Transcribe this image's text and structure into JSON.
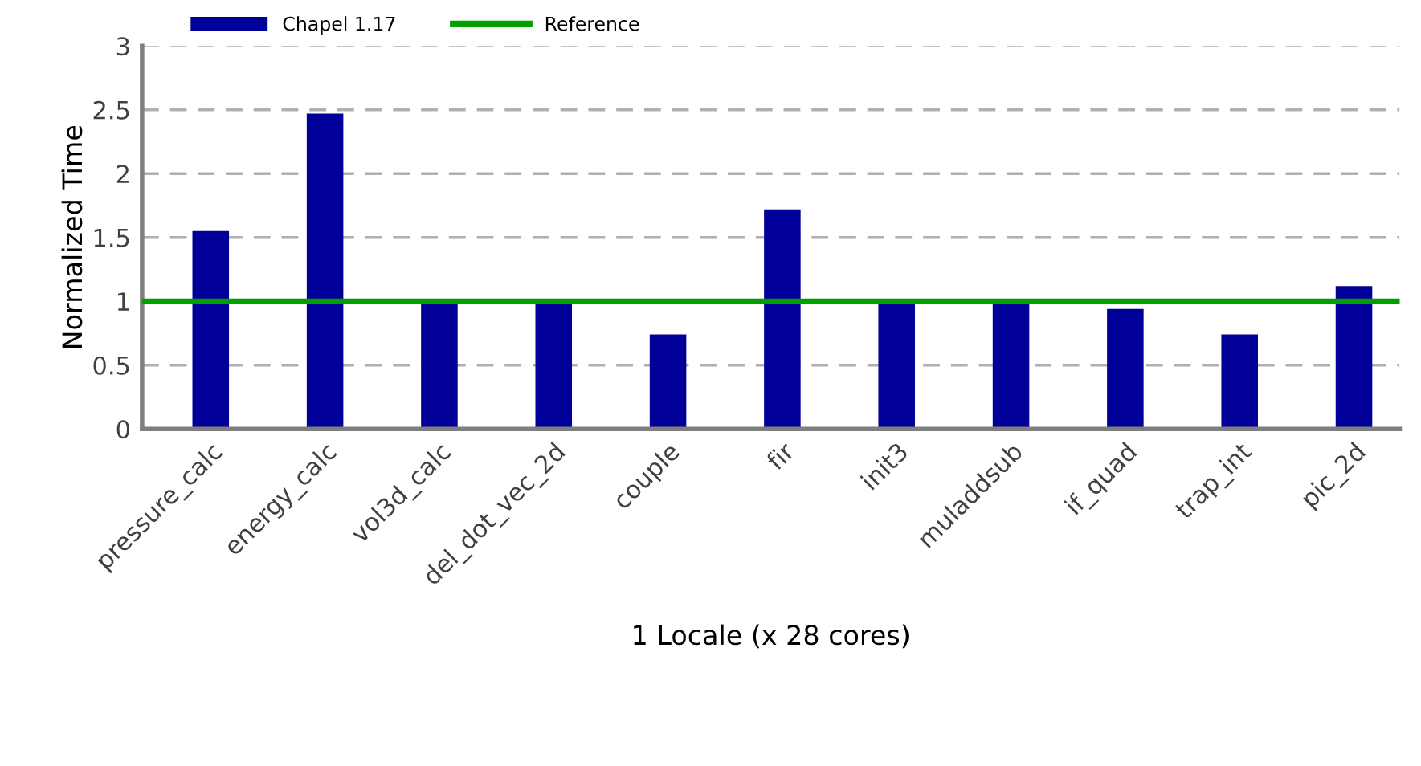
{
  "chart_data": {
    "type": "bar",
    "xlabel": "1 Locale (x 28 cores)",
    "ylabel": "Normalized Time",
    "categories": [
      "pressure_calc",
      "energy_calc",
      "vol3d_calc",
      "del_dot_vec_2d",
      "couple",
      "fir",
      "init3",
      "muladdsub",
      "if_quad",
      "trap_int",
      "pic_2d"
    ],
    "series": [
      {
        "name": "Chapel 1.17",
        "color": "#000099",
        "values": [
          1.55,
          2.47,
          1.0,
          1.0,
          0.74,
          1.72,
          0.98,
          0.98,
          0.94,
          0.74,
          1.12
        ]
      }
    ],
    "ref_lines": [
      {
        "axis": "y",
        "value": 1,
        "label": "Reference",
        "color": "#00a000",
        "line_style": "solid"
      }
    ],
    "ylim": [
      0,
      3
    ],
    "yticks": [
      0,
      0.5,
      1,
      1.5,
      2,
      2.5,
      3
    ],
    "grid": "y",
    "legend": "top left"
  }
}
